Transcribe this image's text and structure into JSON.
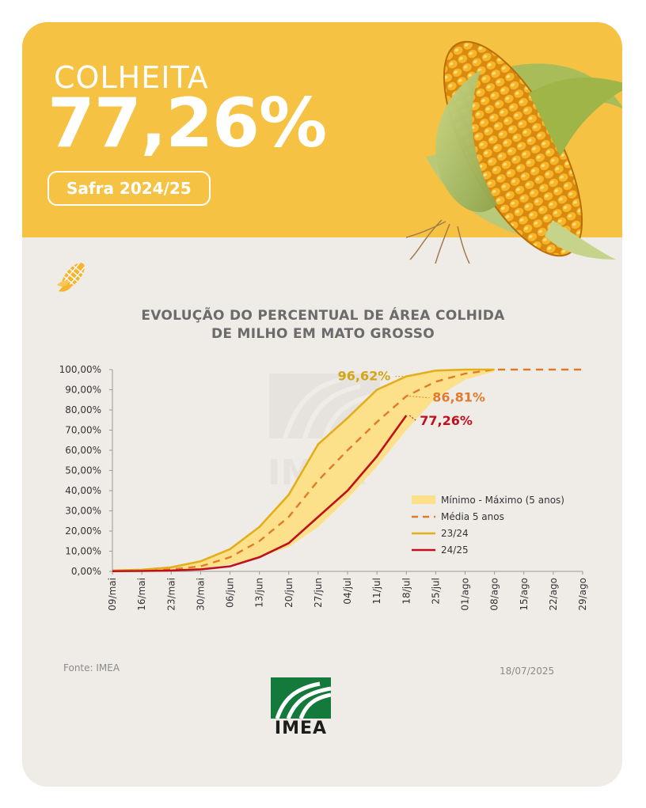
{
  "header": {
    "eyebrow": "COLHEITA",
    "big_value": "77,26%",
    "season": "Safra 2024/25",
    "background_color": "#f6c244"
  },
  "icons": {
    "hero": "corn-cob-icon",
    "small": "corn-icon",
    "watermark": "imea-watermark-icon"
  },
  "source": "Fonte: IMEA",
  "date": "18/07/2025",
  "brand": {
    "logo_text": "IMEA",
    "color": "#137a3c"
  },
  "chart_data": {
    "type": "line",
    "title_lines": [
      "EVOLUÇÃO DO PERCENTUAL DE ÁREA COLHIDA",
      "DE MILHO EM MATO GROSSO"
    ],
    "x": [
      "09/mai",
      "16/mai",
      "23/mai",
      "30/mai",
      "06/jun",
      "13/jun",
      "20/jun",
      "27/jun",
      "04/jul",
      "11/jul",
      "18/jul",
      "25/jul",
      "01/ago",
      "08/ago",
      "15/ago",
      "22/ago",
      "29/ago"
    ],
    "y_ticks": [
      "0,00%",
      "10,00%",
      "20,00%",
      "30,00%",
      "40,00%",
      "50,00%",
      "60,00%",
      "70,00%",
      "80,00%",
      "90,00%",
      "100,00%"
    ],
    "ylim": [
      0,
      100
    ],
    "band": {
      "name": "Mínimo - Máximo (5 anos)",
      "min": [
        0.2,
        0.3,
        0.5,
        1.5,
        3.5,
        7,
        12,
        22,
        36,
        52,
        70,
        86,
        95,
        99,
        null,
        null,
        null
      ],
      "max": [
        0.6,
        1.2,
        2.5,
        5,
        11,
        22,
        38,
        63,
        76,
        90,
        96.62,
        99.5,
        100,
        100,
        null,
        null,
        null
      ],
      "color": "#fde08a"
    },
    "series": [
      {
        "name": "Média 5 anos",
        "values": [
          0.3,
          0.5,
          1,
          2.5,
          7,
          15,
          27,
          45,
          60,
          74,
          86.81,
          94,
          98,
          100,
          100,
          100,
          100
        ],
        "color": "#e07b2a",
        "dashed": true
      },
      {
        "name": "23/24",
        "values": [
          0.4,
          0.8,
          2,
          5,
          11,
          22,
          38,
          63,
          76,
          90,
          96.62,
          99.5,
          100,
          100,
          null,
          null,
          null
        ],
        "color": "#e2ae1a",
        "dashed": false
      },
      {
        "name": "24/25",
        "values": [
          0.1,
          0.2,
          0.4,
          1,
          2.5,
          7,
          14,
          27,
          40,
          57,
          77.26,
          null,
          null,
          null,
          null,
          null,
          null
        ],
        "color": "#c0101a",
        "dashed": false
      }
    ],
    "annotations": [
      {
        "text": "96,62%",
        "series": "23/24",
        "color": "#d4a514"
      },
      {
        "text": "86,81%",
        "series": "Média 5 anos",
        "color": "#e07b2a"
      },
      {
        "text": "77,26%",
        "series": "24/25",
        "color": "#c0101a"
      }
    ],
    "legend_position": "lower-right inside plot",
    "grid": false
  }
}
